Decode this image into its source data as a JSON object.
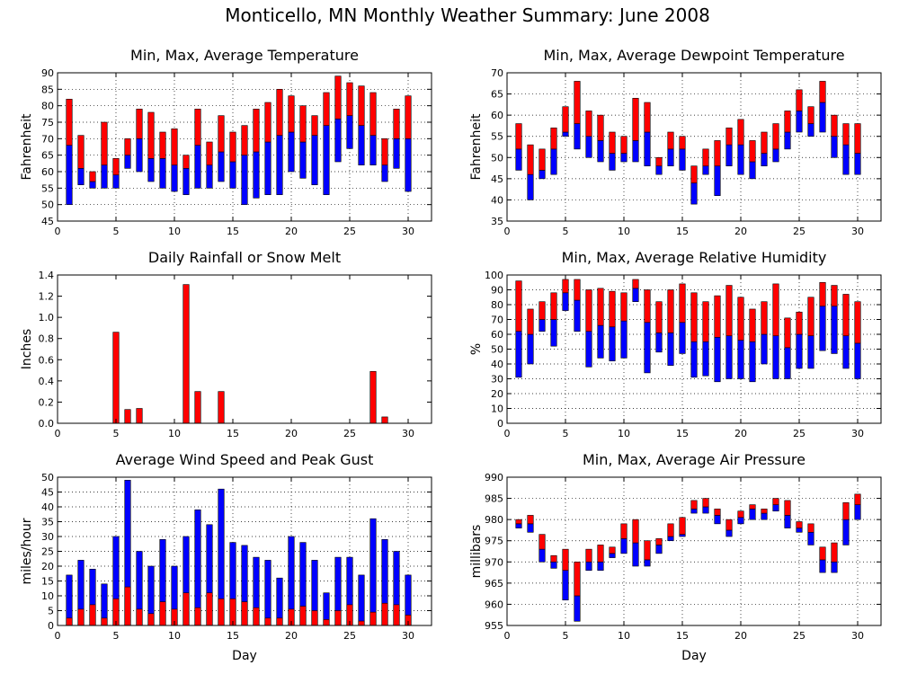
{
  "title": "Monticello, MN Monthly Weather Summary: June 2008",
  "colors": {
    "high": "#ff0000",
    "low": "#0000ff",
    "edge": "#000000"
  },
  "chart_data": [
    {
      "id": "temperature",
      "type": "bar",
      "title": "Min, Max, Average Temperature",
      "ylabel": "Fahrenheit",
      "xlabel": "",
      "xlim": [
        0,
        32
      ],
      "ylim": [
        45,
        90
      ],
      "xticks": [
        0,
        5,
        10,
        15,
        20,
        25,
        30
      ],
      "yticks": [
        45,
        50,
        55,
        60,
        65,
        70,
        75,
        80,
        85,
        90
      ],
      "grid": true,
      "days": [
        1,
        2,
        3,
        4,
        5,
        6,
        7,
        8,
        9,
        10,
        11,
        12,
        13,
        14,
        15,
        16,
        17,
        18,
        19,
        20,
        21,
        22,
        23,
        24,
        25,
        26,
        27,
        28,
        29,
        30
      ],
      "series": [
        {
          "key": "min",
          "values": [
            50,
            56,
            55,
            55,
            55,
            61,
            60,
            57,
            55,
            54,
            53,
            55,
            55,
            57,
            55,
            50,
            52,
            53,
            53,
            60,
            58,
            56,
            53,
            63,
            67,
            62,
            62,
            57,
            61,
            54
          ]
        },
        {
          "key": "avg",
          "values": [
            68,
            61,
            57,
            62,
            59,
            65,
            70,
            64,
            64,
            62,
            61,
            68,
            62,
            66,
            63,
            65,
            66,
            69,
            71,
            72,
            69,
            71,
            74,
            76,
            77,
            74,
            71,
            62,
            70,
            70
          ]
        },
        {
          "key": "max",
          "values": [
            82,
            71,
            60,
            75,
            64,
            70,
            79,
            78,
            72,
            73,
            65,
            79,
            69,
            77,
            72,
            74,
            79,
            81,
            85,
            83,
            80,
            77,
            84,
            89,
            87,
            86,
            84,
            70,
            79,
            83
          ]
        }
      ]
    },
    {
      "id": "dewpoint",
      "type": "bar",
      "title": "Min, Max, Average Dewpoint Temperature",
      "ylabel": "Fahrenheit",
      "xlabel": "",
      "xlim": [
        0,
        32
      ],
      "ylim": [
        35,
        70
      ],
      "xticks": [
        0,
        5,
        10,
        15,
        20,
        25,
        30
      ],
      "yticks": [
        35,
        40,
        45,
        50,
        55,
        60,
        65,
        70
      ],
      "grid": true,
      "days": [
        1,
        2,
        3,
        4,
        5,
        6,
        7,
        8,
        9,
        10,
        11,
        12,
        13,
        14,
        15,
        16,
        17,
        18,
        19,
        20,
        21,
        22,
        23,
        24,
        25,
        26,
        27,
        28,
        29,
        30
      ],
      "series": [
        {
          "key": "min",
          "values": [
            47,
            40,
            45,
            46,
            55,
            52,
            50,
            49,
            47,
            49,
            49,
            48,
            46,
            48,
            47,
            39,
            46,
            41,
            48,
            46,
            45,
            48,
            49,
            52,
            56,
            55,
            56,
            50,
            46,
            46
          ]
        },
        {
          "key": "avg",
          "values": [
            52,
            46,
            47,
            52,
            56,
            58,
            55,
            54,
            51,
            51,
            54,
            56,
            48,
            52,
            52,
            44,
            48,
            48,
            53,
            53,
            49,
            51,
            52,
            56,
            61,
            58,
            63,
            55,
            53,
            51
          ]
        },
        {
          "key": "max",
          "values": [
            58,
            53,
            52,
            57,
            62,
            68,
            61,
            60,
            56,
            55,
            64,
            63,
            50,
            56,
            55,
            48,
            52,
            54,
            57,
            59,
            54,
            56,
            58,
            61,
            66,
            62,
            68,
            60,
            58,
            58
          ]
        }
      ]
    },
    {
      "id": "rainfall",
      "type": "bar",
      "title": "Daily Rainfall or Snow Melt",
      "ylabel": "Inches",
      "xlabel": "",
      "xlim": [
        0,
        32
      ],
      "ylim": [
        0,
        1.4
      ],
      "xticks": [
        0,
        5,
        10,
        15,
        20,
        25,
        30
      ],
      "yticks": [
        0,
        0.2,
        0.4,
        0.6,
        0.8,
        1,
        1.2,
        1.4
      ],
      "yticklabels": [
        "0.0",
        "0.2",
        "0.4",
        "0.6",
        "0.8",
        "1.0",
        "1.2",
        "1.4"
      ],
      "grid": false,
      "days": [
        1,
        2,
        3,
        4,
        5,
        6,
        7,
        8,
        9,
        10,
        11,
        12,
        13,
        14,
        15,
        16,
        17,
        18,
        19,
        20,
        21,
        22,
        23,
        24,
        25,
        26,
        27,
        28,
        29,
        30
      ],
      "series": [
        {
          "key": "rain",
          "values": [
            0,
            0,
            0,
            0,
            0.86,
            0.13,
            0.14,
            0,
            0,
            0,
            1.31,
            0.3,
            0,
            0.3,
            0,
            0,
            0,
            0,
            0,
            0,
            0,
            0,
            0,
            0,
            0,
            0,
            0.49,
            0.06,
            0,
            0
          ]
        }
      ]
    },
    {
      "id": "humidity",
      "type": "bar",
      "title": "Min, Max, Average Relative Humidity",
      "ylabel": "%",
      "xlabel": "",
      "xlim": [
        0,
        32
      ],
      "ylim": [
        0,
        100
      ],
      "xticks": [
        0,
        5,
        10,
        15,
        20,
        25,
        30
      ],
      "yticks": [
        0,
        10,
        20,
        30,
        40,
        50,
        60,
        70,
        80,
        90,
        100
      ],
      "grid": true,
      "days": [
        1,
        2,
        3,
        4,
        5,
        6,
        7,
        8,
        9,
        10,
        11,
        12,
        13,
        14,
        15,
        16,
        17,
        18,
        19,
        20,
        21,
        22,
        23,
        24,
        25,
        26,
        27,
        28,
        29,
        30
      ],
      "series": [
        {
          "key": "min",
          "values": [
            31,
            40,
            62,
            52,
            76,
            62,
            38,
            44,
            42,
            44,
            82,
            34,
            48,
            39,
            47,
            31,
            32,
            28,
            30,
            30,
            28,
            40,
            30,
            30,
            37,
            37,
            49,
            47,
            37,
            30
          ]
        },
        {
          "key": "avg",
          "values": [
            62,
            60,
            70,
            70,
            88,
            83,
            62,
            66,
            65,
            69,
            91,
            68,
            61,
            61,
            68,
            55,
            55,
            58,
            59,
            56,
            55,
            60,
            59,
            51,
            60,
            59,
            79,
            79,
            59,
            54
          ]
        },
        {
          "key": "max",
          "values": [
            96,
            77,
            82,
            88,
            97,
            97,
            90,
            91,
            89,
            88,
            97,
            90,
            82,
            90,
            94,
            88,
            82,
            86,
            93,
            85,
            77,
            82,
            94,
            71,
            75,
            85,
            95,
            93,
            87,
            82
          ]
        }
      ]
    },
    {
      "id": "wind",
      "type": "bar",
      "title": "Average Wind Speed and Peak Gust",
      "ylabel": "miles/hour",
      "xlabel": "Day",
      "xlim": [
        0,
        32
      ],
      "ylim": [
        0,
        50
      ],
      "xticks": [
        0,
        5,
        10,
        15,
        20,
        25,
        30
      ],
      "yticks": [
        0,
        5,
        10,
        15,
        20,
        25,
        30,
        35,
        40,
        45,
        50
      ],
      "grid": true,
      "days": [
        1,
        2,
        3,
        4,
        5,
        6,
        7,
        8,
        9,
        10,
        11,
        12,
        13,
        14,
        15,
        16,
        17,
        18,
        19,
        20,
        21,
        22,
        23,
        24,
        25,
        26,
        27,
        28,
        29,
        30
      ],
      "series": [
        {
          "key": "avg",
          "values": [
            2.5,
            5.5,
            7,
            2.5,
            9,
            13,
            5.5,
            4,
            8,
            5.5,
            11,
            6,
            11,
            9,
            9,
            8,
            6,
            2.5,
            2.5,
            5.5,
            6.5,
            5,
            2,
            5,
            7,
            1.5,
            4.5,
            7.5,
            7,
            3.5
          ]
        },
        {
          "key": "gust",
          "values": [
            17,
            22,
            19,
            14,
            30,
            49,
            25,
            20,
            29,
            20,
            30,
            39,
            34,
            46,
            28,
            27,
            23,
            22,
            16,
            30,
            28,
            22,
            11,
            23,
            23,
            17,
            36,
            29,
            25,
            17
          ]
        }
      ]
    },
    {
      "id": "pressure",
      "type": "bar",
      "title": "Min, Max, Average Air Pressure",
      "ylabel": "millibars",
      "xlabel": "Day",
      "xlim": [
        0,
        32
      ],
      "ylim": [
        955,
        990
      ],
      "xticks": [
        0,
        5,
        10,
        15,
        20,
        25,
        30
      ],
      "yticks": [
        955,
        960,
        965,
        970,
        975,
        980,
        985,
        990
      ],
      "grid": true,
      "days": [
        1,
        2,
        3,
        4,
        5,
        6,
        7,
        8,
        9,
        10,
        11,
        12,
        13,
        14,
        15,
        16,
        17,
        18,
        19,
        20,
        21,
        22,
        23,
        24,
        25,
        26,
        27,
        28,
        29,
        30
      ],
      "series": [
        {
          "key": "min",
          "values": [
            978,
            977,
            970,
            968.5,
            961,
            956,
            968,
            968,
            971,
            972,
            969,
            969,
            972,
            975,
            976,
            981.5,
            981.5,
            979,
            976,
            979,
            980,
            980,
            982,
            978,
            977,
            974,
            967.5,
            967.5,
            974,
            980
          ]
        },
        {
          "key": "avg",
          "values": [
            979,
            979,
            973,
            970,
            968,
            962,
            970,
            970,
            972,
            975.5,
            974.5,
            970.5,
            974,
            976,
            976.5,
            982.5,
            983,
            981,
            977.5,
            980.5,
            982.5,
            981.5,
            983.5,
            981,
            978,
            977,
            970.5,
            970,
            980,
            983.5
          ]
        },
        {
          "key": "max",
          "values": [
            980,
            981,
            976.5,
            971.5,
            973,
            970,
            973,
            974,
            973.5,
            979,
            980,
            975,
            975.5,
            979,
            980.5,
            984.5,
            985,
            982.5,
            980,
            982,
            983.5,
            982.5,
            985,
            984.5,
            979.5,
            979,
            973.5,
            974.5,
            984,
            986
          ]
        }
      ]
    }
  ]
}
